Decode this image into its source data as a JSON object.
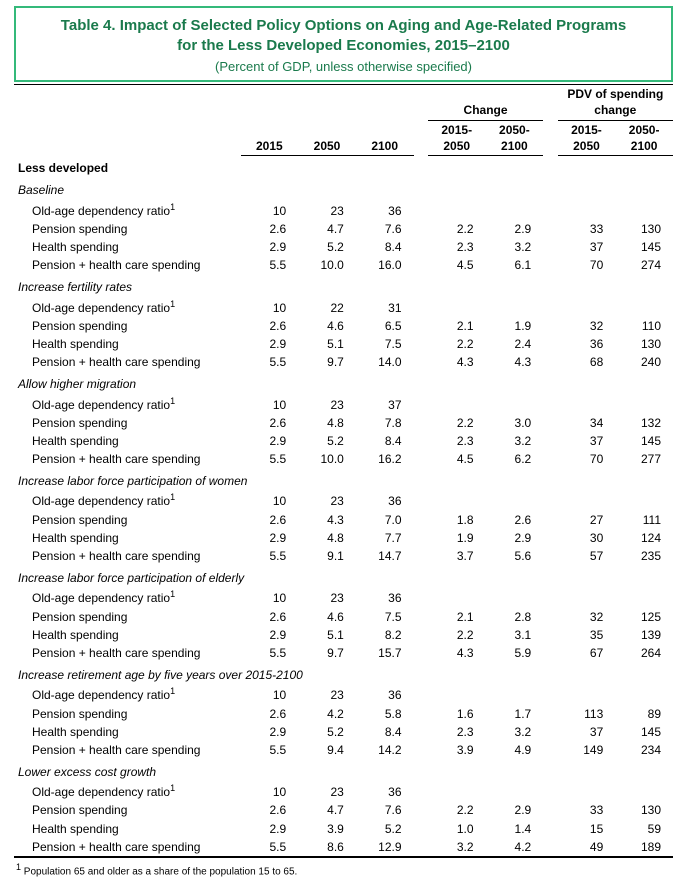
{
  "title": {
    "line1": "Table 4. Impact of Selected Policy Options on Aging and Age-Related Programs",
    "line2": "for the Less Developed Economies, 2015–2100",
    "sub": "(Percent of GDP, unless otherwise specified)"
  },
  "headers": {
    "change": "Change",
    "pdv": "PDV of spending change",
    "y2015": "2015",
    "y2050": "2050",
    "y2100": "2100",
    "r15_50": "2015-2050",
    "r50_100": "2050-2100"
  },
  "region_label": "Less developed",
  "row_labels": {
    "oadr": "Old-age dependency ratio",
    "pension": "Pension spending",
    "health": "Health spending",
    "combo": "Pension + health care spending"
  },
  "scenarios": [
    {
      "name": "Baseline",
      "rows": [
        {
          "k": "oadr",
          "v": [
            "10",
            "23",
            "36",
            "",
            "",
            "",
            ""
          ]
        },
        {
          "k": "pension",
          "v": [
            "2.6",
            "4.7",
            "7.6",
            "2.2",
            "2.9",
            "33",
            "130"
          ]
        },
        {
          "k": "health",
          "v": [
            "2.9",
            "5.2",
            "8.4",
            "2.3",
            "3.2",
            "37",
            "145"
          ]
        },
        {
          "k": "combo",
          "v": [
            "5.5",
            "10.0",
            "16.0",
            "4.5",
            "6.1",
            "70",
            "274"
          ]
        }
      ]
    },
    {
      "name": "Increase fertility rates",
      "rows": [
        {
          "k": "oadr",
          "v": [
            "10",
            "22",
            "31",
            "",
            "",
            "",
            ""
          ]
        },
        {
          "k": "pension",
          "v": [
            "2.6",
            "4.6",
            "6.5",
            "2.1",
            "1.9",
            "32",
            "110"
          ]
        },
        {
          "k": "health",
          "v": [
            "2.9",
            "5.1",
            "7.5",
            "2.2",
            "2.4",
            "36",
            "130"
          ]
        },
        {
          "k": "combo",
          "v": [
            "5.5",
            "9.7",
            "14.0",
            "4.3",
            "4.3",
            "68",
            "240"
          ]
        }
      ]
    },
    {
      "name": "Allow higher migration",
      "rows": [
        {
          "k": "oadr",
          "v": [
            "10",
            "23",
            "37",
            "",
            "",
            "",
            ""
          ]
        },
        {
          "k": "pension",
          "v": [
            "2.6",
            "4.8",
            "7.8",
            "2.2",
            "3.0",
            "34",
            "132"
          ]
        },
        {
          "k": "health",
          "v": [
            "2.9",
            "5.2",
            "8.4",
            "2.3",
            "3.2",
            "37",
            "145"
          ]
        },
        {
          "k": "combo",
          "v": [
            "5.5",
            "10.0",
            "16.2",
            "4.5",
            "6.2",
            "70",
            "277"
          ]
        }
      ]
    },
    {
      "name": "Increase labor force participation of women",
      "rows": [
        {
          "k": "oadr",
          "v": [
            "10",
            "23",
            "36",
            "",
            "",
            "",
            ""
          ]
        },
        {
          "k": "pension",
          "v": [
            "2.6",
            "4.3",
            "7.0",
            "1.8",
            "2.6",
            "27",
            "111"
          ]
        },
        {
          "k": "health",
          "v": [
            "2.9",
            "4.8",
            "7.7",
            "1.9",
            "2.9",
            "30",
            "124"
          ]
        },
        {
          "k": "combo",
          "v": [
            "5.5",
            "9.1",
            "14.7",
            "3.7",
            "5.6",
            "57",
            "235"
          ]
        }
      ]
    },
    {
      "name": "Increase labor force participation of elderly",
      "rows": [
        {
          "k": "oadr",
          "v": [
            "10",
            "23",
            "36",
            "",
            "",
            "",
            ""
          ]
        },
        {
          "k": "pension",
          "v": [
            "2.6",
            "4.6",
            "7.5",
            "2.1",
            "2.8",
            "32",
            "125"
          ]
        },
        {
          "k": "health",
          "v": [
            "2.9",
            "5.1",
            "8.2",
            "2.2",
            "3.1",
            "35",
            "139"
          ]
        },
        {
          "k": "combo",
          "v": [
            "5.5",
            "9.7",
            "15.7",
            "4.3",
            "5.9",
            "67",
            "264"
          ]
        }
      ]
    },
    {
      "name": "Increase retirement age by five years over 2015-2100",
      "rows": [
        {
          "k": "oadr",
          "v": [
            "10",
            "23",
            "36",
            "",
            "",
            "",
            ""
          ]
        },
        {
          "k": "pension",
          "v": [
            "2.6",
            "4.2",
            "5.8",
            "1.6",
            "1.7",
            "113",
            "89"
          ]
        },
        {
          "k": "health",
          "v": [
            "2.9",
            "5.2",
            "8.4",
            "2.3",
            "3.2",
            "37",
            "145"
          ]
        },
        {
          "k": "combo",
          "v": [
            "5.5",
            "9.4",
            "14.2",
            "3.9",
            "4.9",
            "149",
            "234"
          ]
        }
      ]
    },
    {
      "name": "Lower excess cost growth",
      "rows": [
        {
          "k": "oadr",
          "v": [
            "10",
            "23",
            "36",
            "",
            "",
            "",
            ""
          ]
        },
        {
          "k": "pension",
          "v": [
            "2.6",
            "4.7",
            "7.6",
            "2.2",
            "2.9",
            "33",
            "130"
          ]
        },
        {
          "k": "health",
          "v": [
            "2.9",
            "3.9",
            "5.2",
            "1.0",
            "1.4",
            "15",
            "59"
          ]
        },
        {
          "k": "combo",
          "v": [
            "5.5",
            "8.6",
            "12.9",
            "3.2",
            "4.2",
            "49",
            "189"
          ]
        }
      ]
    }
  ],
  "footnote_marker": "1",
  "footnote": "Population 65 and older as a share of the population 15 to 65."
}
